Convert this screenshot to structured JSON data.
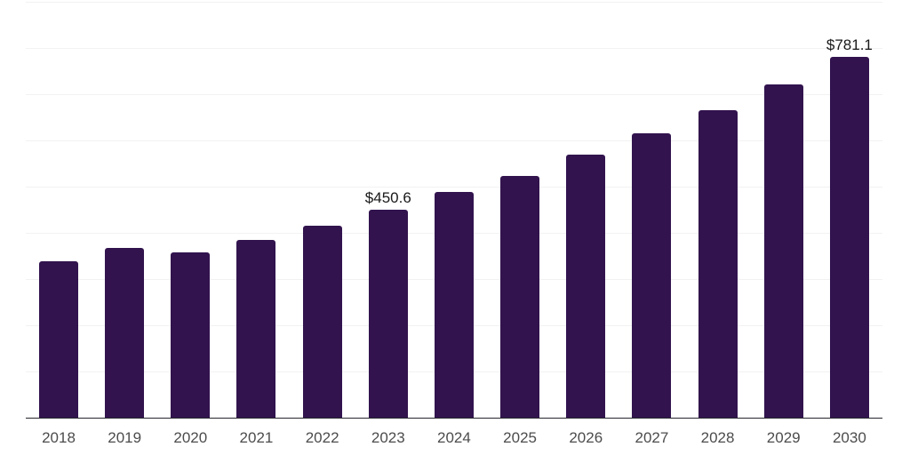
{
  "chart_data": {
    "type": "bar",
    "title": "",
    "xlabel": "",
    "ylabel": "",
    "categories": [
      "2018",
      "2019",
      "2020",
      "2021",
      "2022",
      "2023",
      "2024",
      "2025",
      "2026",
      "2027",
      "2028",
      "2029",
      "2030"
    ],
    "values": [
      339,
      368,
      358,
      385,
      416,
      450.6,
      488,
      524,
      570,
      615,
      665,
      721,
      781.1
    ],
    "data_labels": [
      "",
      "",
      "",
      "",
      "",
      "$450.6",
      "",
      "",
      "",
      "",
      "",
      "",
      "$781.1"
    ],
    "ylim": [
      0,
      900
    ],
    "gridline_step": 100,
    "grid": "horizontal",
    "legend": "none",
    "bar_color": "#32134e",
    "gridline_color": "#f2f2f2",
    "axis_line_color": "#26262e",
    "tick_label_color": "#4c4c4c",
    "data_label_color": "#191919"
  }
}
